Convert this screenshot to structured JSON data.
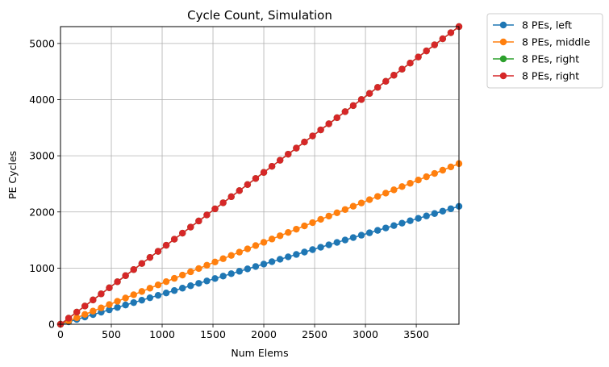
{
  "chart_data": {
    "type": "line",
    "title": "Cycle Count, Simulation",
    "xlabel": "Num Elems",
    "ylabel": "PE Cycles",
    "xlim": [
      0,
      3920
    ],
    "ylim": [
      0,
      5300
    ],
    "xticks": [
      0,
      500,
      1000,
      1500,
      2000,
      2500,
      3000,
      3500
    ],
    "yticks": [
      0,
      1000,
      2000,
      3000,
      4000,
      5000
    ],
    "grid": true,
    "legend_placement": "outside-top-right",
    "x": {
      "start": 0,
      "step": 80,
      "count": 50
    },
    "series": [
      {
        "name": "8 PEs, left",
        "color": "#1f77b4",
        "slope": 0.5357,
        "intercept": 0
      },
      {
        "name": "8 PEs, middle",
        "color": "#ff7f0e",
        "slope": 0.7296,
        "intercept": 0
      },
      {
        "name": "8 PEs, right",
        "color": "#2ca02c",
        "slope": 1.352,
        "intercept": 0
      },
      {
        "name": "8 PEs, right",
        "color": "#d62728",
        "slope": 1.352,
        "intercept": 0
      }
    ]
  }
}
